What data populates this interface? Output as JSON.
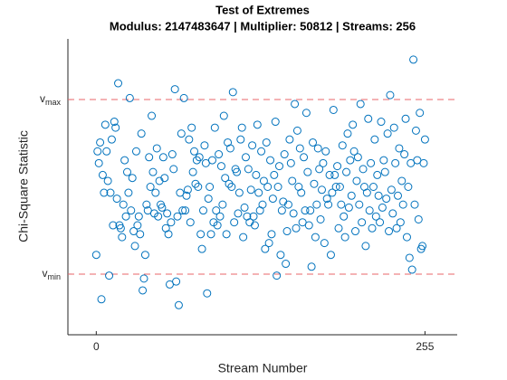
{
  "chart_data": {
    "type": "scatter",
    "title": "Test of Extremes",
    "subtitle": "Modulus: 2147483647 | Multiplier: 50812 | Streams: 256",
    "x_label": "Stream Number",
    "y_label": "Chi-Square Statistic",
    "xlim": [
      -22,
      280
    ],
    "ylim": [
      0,
      100
    ],
    "xticks": [
      0,
      255
    ],
    "yticks": [
      {
        "value": 20.5,
        "label": "v",
        "subscript": "min"
      },
      {
        "value": 79.5,
        "label": "v",
        "subscript": "max"
      }
    ],
    "reference_lines": true,
    "reference_line_color": "#e8646a",
    "color": "#0072bd",
    "x": [
      0,
      1,
      2,
      3,
      4,
      5,
      6,
      7,
      8,
      9,
      10,
      11,
      12,
      13,
      14,
      15,
      16,
      17,
      18,
      19,
      20,
      21,
      22,
      23,
      24,
      25,
      26,
      27,
      28,
      29,
      30,
      31,
      32,
      33,
      34,
      35,
      36,
      37,
      38,
      39,
      40,
      41,
      42,
      43,
      44,
      45,
      46,
      47,
      48,
      49,
      50,
      51,
      52,
      53,
      54,
      55,
      56,
      57,
      58,
      59,
      60,
      61,
      62,
      63,
      64,
      65,
      66,
      67,
      68,
      69,
      70,
      71,
      72,
      73,
      74,
      75,
      76,
      77,
      78,
      79,
      80,
      81,
      82,
      83,
      84,
      85,
      86,
      87,
      88,
      89,
      90,
      91,
      92,
      93,
      94,
      95,
      96,
      97,
      98,
      99,
      100,
      101,
      102,
      103,
      104,
      105,
      106,
      107,
      108,
      109,
      110,
      111,
      112,
      113,
      114,
      115,
      116,
      117,
      118,
      119,
      120,
      121,
      122,
      123,
      124,
      125,
      126,
      127,
      128,
      129,
      130,
      131,
      132,
      133,
      134,
      135,
      136,
      137,
      138,
      139,
      140,
      141,
      142,
      143,
      144,
      145,
      146,
      147,
      148,
      149,
      150,
      151,
      152,
      153,
      154,
      155,
      156,
      157,
      158,
      159,
      160,
      161,
      162,
      163,
      164,
      165,
      166,
      167,
      168,
      169,
      170,
      171,
      172,
      173,
      174,
      175,
      176,
      177,
      178,
      179,
      180,
      181,
      182,
      183,
      184,
      185,
      186,
      187,
      188,
      189,
      190,
      191,
      192,
      193,
      194,
      195,
      196,
      197,
      198,
      199,
      200,
      201,
      202,
      203,
      204,
      205,
      206,
      207,
      208,
      209,
      210,
      211,
      212,
      213,
      214,
      215,
      216,
      217,
      218,
      219,
      220,
      221,
      222,
      223,
      224,
      225,
      226,
      227,
      228,
      229,
      230,
      231,
      232,
      233,
      234,
      235,
      236,
      237,
      238,
      239,
      240,
      241,
      242,
      243,
      244,
      245,
      246,
      247,
      248,
      249,
      250,
      251,
      252,
      253,
      254,
      255
    ],
    "values": [
      27,
      62,
      58,
      65,
      12,
      54,
      48,
      71,
      62,
      52,
      20,
      48,
      66,
      37,
      72,
      70,
      46,
      85,
      37,
      36,
      33,
      44,
      59,
      40,
      55,
      48,
      80,
      42,
      53,
      35,
      30,
      62,
      37,
      40,
      34,
      68,
      15,
      19,
      27,
      44,
      42,
      60,
      50,
      74,
      55,
      41,
      48,
      63,
      40,
      52,
      44,
      43,
      60,
      53,
      36,
      41,
      34,
      17,
      38,
      61,
      56,
      83,
      18,
      40,
      10,
      48,
      68,
      42,
      80,
      42,
      47,
      49,
      66,
      38,
      70,
      55,
      62,
      51,
      59,
      50,
      60,
      34,
      29,
      42,
      64,
      58,
      14,
      46,
      50,
      34,
      59,
      38,
      70,
      42,
      37,
      61,
      40,
      57,
      44,
      74,
      53,
      34,
      65,
      51,
      63,
      50,
      82,
      38,
      56,
      55,
      41,
      48,
      66,
      70,
      33,
      43,
      60,
      40,
      56,
      38,
      49,
      64,
      40,
      37,
      54,
      71,
      48,
      42,
      62,
      44,
      52,
      29,
      65,
      50,
      31,
      59,
      34,
      46,
      54,
      72,
      20,
      50,
      57,
      27,
      42,
      45,
      61,
      24,
      35,
      44,
      66,
      58,
      52,
      41,
      78,
      36,
      69,
      50,
      63,
      48,
      38,
      60,
      42,
      75,
      55,
      37,
      42,
      23,
      65,
      51,
      33,
      44,
      63,
      56,
      39,
      49,
      58,
      31,
      62,
      46,
      44,
      54,
      27,
      48,
      76,
      54,
      50,
      57,
      36,
      50,
      44,
      64,
      40,
      33,
      55,
      68,
      43,
      59,
      47,
      71,
      62,
      35,
      52,
      60,
      44,
      78,
      38,
      56,
      50,
      30,
      48,
      73,
      42,
      58,
      36,
      50,
      66,
      40,
      54,
      47,
      38,
      72,
      43,
      59,
      55,
      46,
      68,
      35,
      81,
      49,
      41,
      70,
      58,
      36,
      47,
      63,
      38,
      52,
      44,
      61,
      73,
      33,
      50,
      26,
      58,
      22,
      93,
      44,
      69,
      59,
      39,
      75,
      29,
      30,
      58,
      66
    ]
  }
}
